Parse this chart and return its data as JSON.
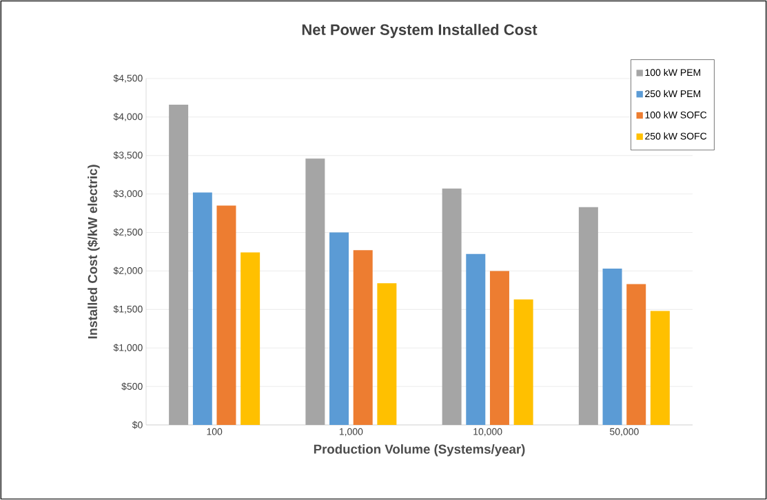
{
  "chart_data": {
    "type": "bar",
    "title": "Net Power System Installed Cost",
    "xlabel": "Production  Volume (Systems/year)",
    "ylabel": "Installed Cost  ($/kW electric)",
    "categories": [
      "100",
      "1,000",
      "10,000",
      "50,000"
    ],
    "series": [
      {
        "name": "100 kW PEM",
        "color": "#a5a5a5",
        "values": [
          4160,
          3460,
          3070,
          2830
        ]
      },
      {
        "name": "250 kW PEM",
        "color": "#5b9bd5",
        "values": [
          3020,
          2500,
          2220,
          2030
        ]
      },
      {
        "name": "100 kW SOFC",
        "color": "#ed7d31",
        "values": [
          2850,
          2270,
          2000,
          1830
        ]
      },
      {
        "name": "250 kW SOFC",
        "color": "#ffc000",
        "values": [
          2240,
          1840,
          1630,
          1480
        ]
      }
    ],
    "ylim": [
      0,
      4500
    ],
    "yticks": [
      {
        "value": 0,
        "label": "$0"
      },
      {
        "value": 500,
        "label": "$500"
      },
      {
        "value": 1000,
        "label": "$1,000"
      },
      {
        "value": 1500,
        "label": "$1,500"
      },
      {
        "value": 2000,
        "label": "$2,000"
      },
      {
        "value": 2500,
        "label": "$2,500"
      },
      {
        "value": 3000,
        "label": "$3,000"
      },
      {
        "value": 3500,
        "label": "$3,500"
      },
      {
        "value": 4000,
        "label": "$4,000"
      },
      {
        "value": 4500,
        "label": "$4,500"
      }
    ],
    "grid": "y",
    "legend": "top right"
  }
}
